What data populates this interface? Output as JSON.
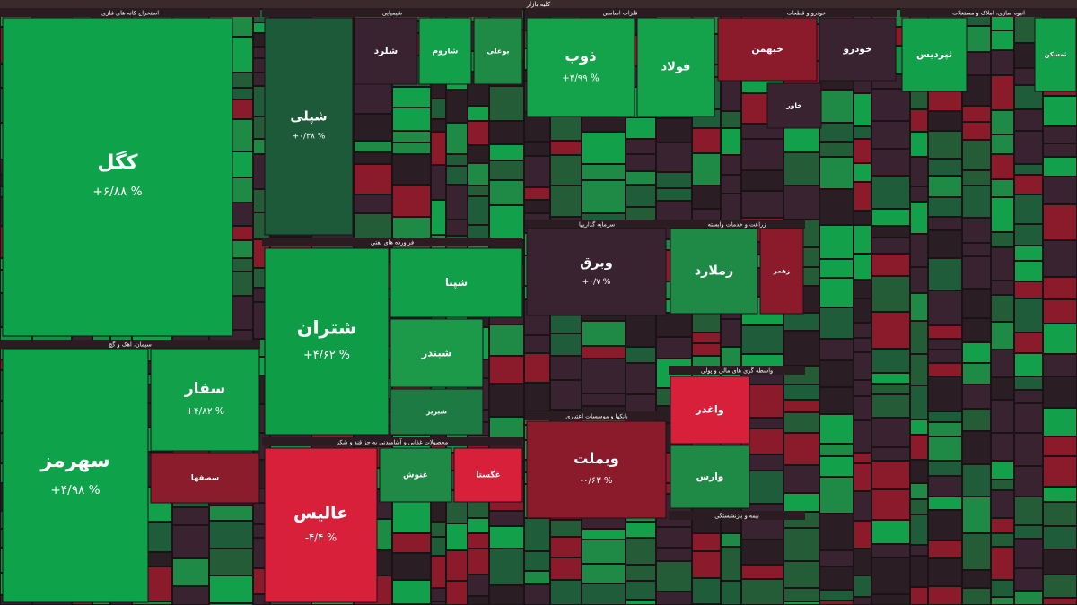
{
  "chart_data": {
    "type": "treemap",
    "title": "کلیه بازار",
    "groups": [
      {
        "name": "استخراج کانه های فلزی",
        "categories": [
          "کگل"
        ],
        "values": [
          6.88
        ],
        "value_labels": [
          "+۶/۸۸ %"
        ],
        "colors": [
          "#0ea34a"
        ]
      },
      {
        "name": "سیمان، آهک و گچ",
        "categories": [
          "سهرمز",
          "سفار",
          "سصفها"
        ],
        "values": [
          4.98,
          4.82,
          null
        ],
        "value_labels": [
          "+۴/۹۸ %",
          "+۴/۸۲ %",
          null
        ],
        "colors": [
          "#0ea34a",
          "#13a04a",
          "#8a1c2c"
        ]
      },
      {
        "name": "شیمیایی",
        "categories": [
          "شپلی",
          "شلرد",
          "شاروم",
          "بوعلی"
        ],
        "values": [
          0.38,
          null,
          null,
          null
        ],
        "value_labels": [
          "+۰/۳۸ %",
          null,
          null,
          null
        ],
        "colors": [
          "#1c5a3a",
          "#3a2331",
          "#12a04a",
          "#1e8a45"
        ]
      },
      {
        "name": "فراورده های نفتی",
        "categories": [
          "شتران",
          "شپنا",
          "شبندر",
          "شبریز"
        ],
        "values": [
          4.62,
          null,
          null,
          null
        ],
        "value_labels": [
          "+۴/۶۲ %",
          null,
          null,
          null
        ],
        "colors": [
          "#0f9c47",
          "#129f4a",
          "#1c9a4a",
          "#1c7a42"
        ]
      },
      {
        "name": "فلزات اساسی",
        "categories": [
          "ذوب",
          "فولاد"
        ],
        "values": [
          4.99,
          null
        ],
        "value_labels": [
          "+۴/۹۹ %",
          null
        ],
        "colors": [
          "#14a24a",
          "#14a24a"
        ]
      },
      {
        "name": "خودرو و قطعات",
        "categories": [
          "خبهمن",
          "خودرو",
          "خاور"
        ],
        "values": [
          null,
          null,
          null
        ],
        "value_labels": [
          null,
          null,
          null
        ],
        "colors": [
          "#8b1a2a",
          "#3a2331",
          "#3a2331"
        ]
      },
      {
        "name": "انبوه سازی، املاک و مستغلات",
        "categories": [
          "ثپردیس",
          "ثمسکن"
        ],
        "values": [
          null,
          null
        ],
        "value_labels": [
          null,
          null
        ],
        "colors": [
          "#13a04a",
          "#13a04a"
        ]
      },
      {
        "name": "سرمایه گذاریها",
        "categories": [
          "وبرق"
        ],
        "values": [
          0.7
        ],
        "value_labels": [
          "+۰/۷ %"
        ],
        "colors": [
          "#3a2331"
        ]
      },
      {
        "name": "زراعت و خدمات وابسته",
        "categories": [
          "زملارد",
          "زهمر"
        ],
        "values": [
          null,
          null
        ],
        "value_labels": [
          null,
          null
        ],
        "colors": [
          "#1e8a45",
          "#8b1a2a"
        ]
      },
      {
        "name": "بانکها و موسسات اعتباری",
        "categories": [
          "وبملت"
        ],
        "values": [
          -0.63
        ],
        "value_labels": [
          "-۰/۶۳ %"
        ],
        "colors": [
          "#8b1a2a"
        ]
      },
      {
        "name": "محصولات غذایی و آشامیدنی به جز قند و شکر",
        "categories": [
          "عالیس",
          "غنوش",
          "غگستا"
        ],
        "values": [
          -4.4,
          null,
          null
        ],
        "value_labels": [
          "-۴/۴ %",
          null,
          null
        ],
        "colors": [
          "#d9203a",
          "#1e8a45",
          "#d9203a"
        ]
      },
      {
        "name": "واسطه گری های مالی و پولی",
        "categories": [
          "واغدر",
          "وارس"
        ],
        "values": [
          null,
          null
        ],
        "value_labels": [
          null,
          null
        ],
        "colors": [
          "#d9203a",
          "#1e8a45"
        ]
      },
      {
        "name": "بیمه و بازنشستگی",
        "categories": [],
        "values": [],
        "value_labels": [],
        "colors": []
      }
    ]
  }
}
